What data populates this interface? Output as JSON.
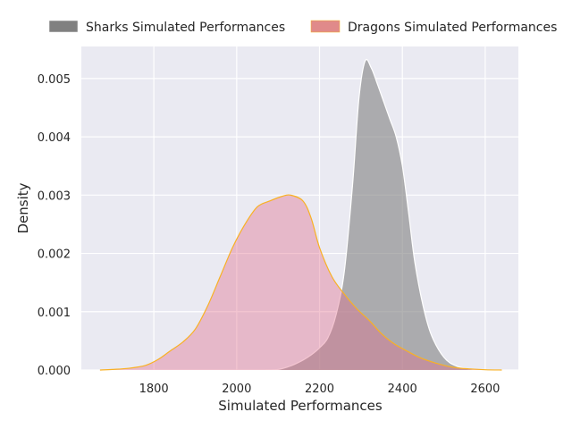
{
  "chart_data": {
    "type": "area",
    "title": "",
    "xlabel": "Simulated Performances",
    "ylabel": "Density",
    "xlim": [
      1625,
      2680
    ],
    "ylim": [
      0,
      0.00555
    ],
    "xticks": [
      1800,
      2000,
      2200,
      2400,
      2600
    ],
    "yticks": [
      0.0,
      0.001,
      0.002,
      0.003,
      0.004,
      0.005
    ],
    "ytick_labels": [
      "0.000",
      "0.001",
      "0.002",
      "0.003",
      "0.004",
      "0.005"
    ],
    "grid": true,
    "legend": {
      "placement": "top, outside plot area, two columns"
    },
    "colors": {
      "background": "#eaeaf2",
      "grid": "#ffffff",
      "sharks_fill": "#808080",
      "sharks_edge": "#ffffff",
      "dragons_fill": "#e06f8b",
      "dragons_edge": "#f9b123"
    },
    "series": [
      {
        "name": "Sharks Simulated Performances",
        "x": [
          2070,
          2100,
          2130,
          2160,
          2180,
          2200,
          2220,
          2240,
          2260,
          2280,
          2295,
          2310,
          2325,
          2340,
          2355,
          2370,
          2385,
          2400,
          2415,
          2430,
          2450,
          2470,
          2500,
          2530,
          2570,
          2610
        ],
        "y": [
          0.0,
          1e-05,
          7e-05,
          0.00017,
          0.00026,
          0.00038,
          0.00055,
          0.00095,
          0.0017,
          0.0032,
          0.00465,
          0.0053,
          0.00518,
          0.0049,
          0.0046,
          0.0043,
          0.004,
          0.0035,
          0.0027,
          0.00185,
          0.0011,
          0.0006,
          0.00022,
          7e-05,
          1e-05,
          0.0
        ]
      },
      {
        "name": "Dragons Simulated Performances",
        "x": [
          1670,
          1700,
          1740,
          1780,
          1810,
          1840,
          1870,
          1900,
          1930,
          1960,
          1990,
          2020,
          2050,
          2080,
          2110,
          2130,
          2160,
          2180,
          2200,
          2230,
          2260,
          2290,
          2320,
          2350,
          2380,
          2410,
          2440,
          2480,
          2520,
          2560,
          2600,
          2640
        ],
        "y": [
          0.0,
          1e-05,
          3e-05,
          8e-05,
          0.00018,
          0.00033,
          0.00048,
          0.0007,
          0.0011,
          0.0016,
          0.0021,
          0.0025,
          0.0028,
          0.0029,
          0.00298,
          0.003,
          0.0029,
          0.0026,
          0.0021,
          0.0016,
          0.0013,
          0.00105,
          0.00085,
          0.00062,
          0.00045,
          0.00033,
          0.00022,
          0.00012,
          5e-05,
          2e-05,
          5e-06,
          0.0
        ]
      }
    ]
  }
}
